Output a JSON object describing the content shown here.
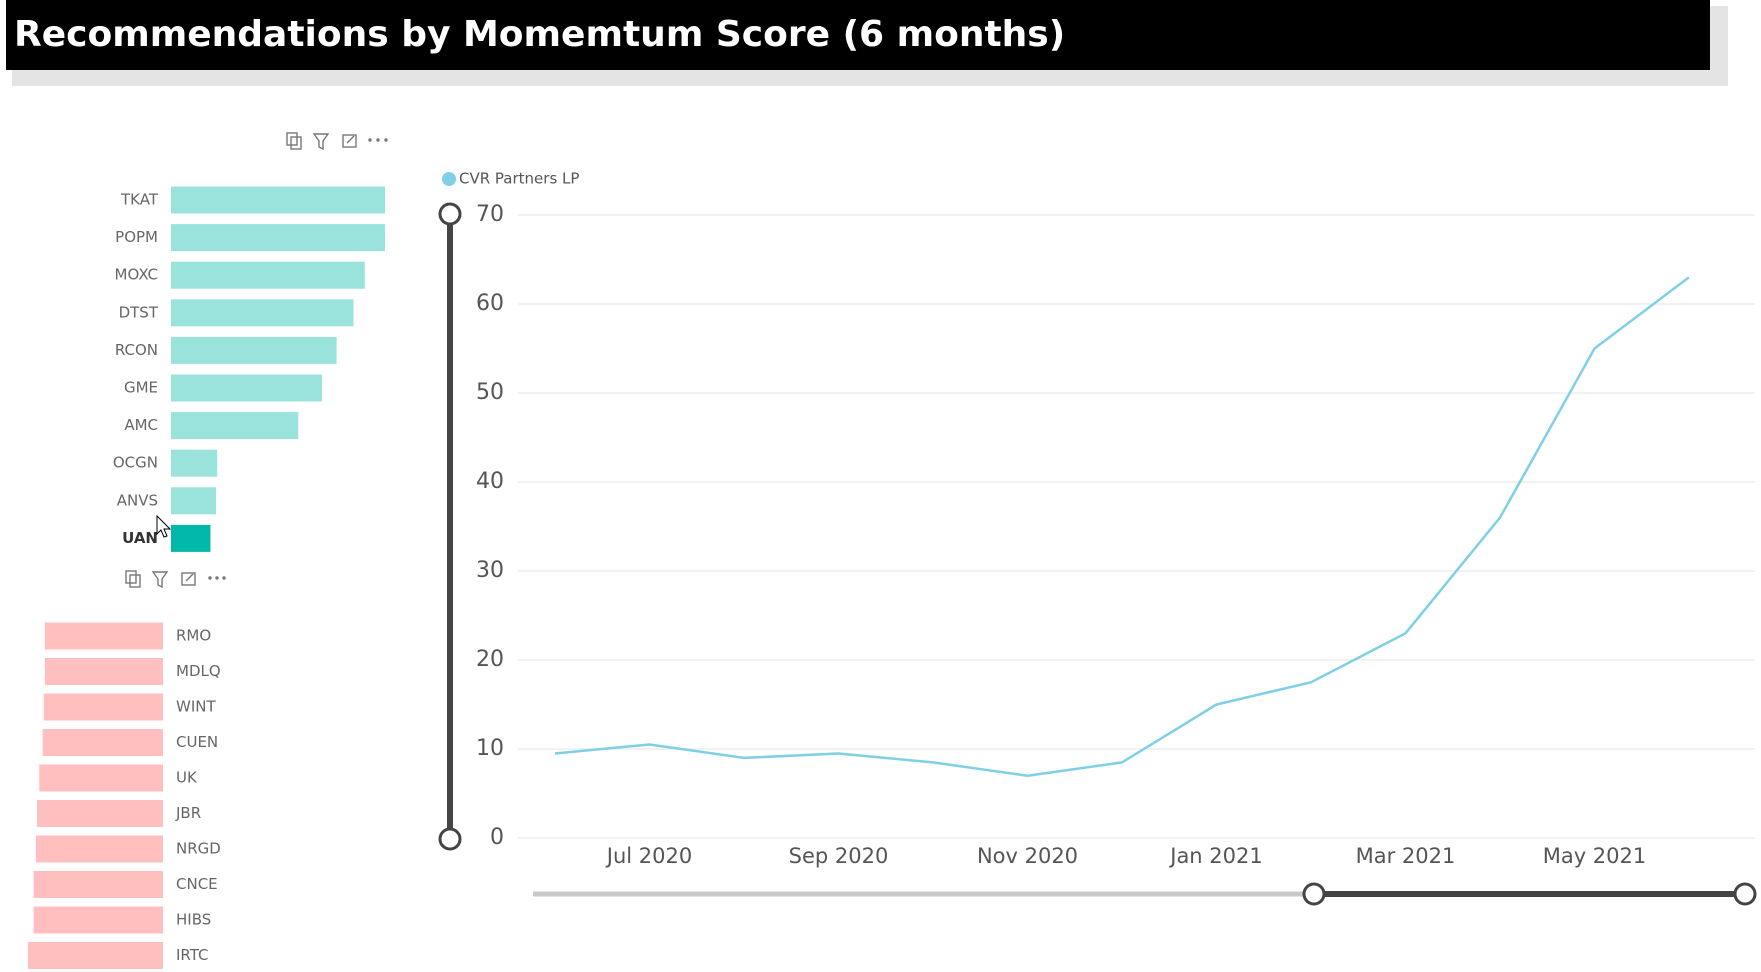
{
  "title": "Recommendations by Momemtum Score (6 months)",
  "chart_data": [
    {
      "type": "bar",
      "orientation": "horizontal",
      "bar_align": "left",
      "categories": [
        "TKAT",
        "POPM",
        "MOXC",
        "DTST",
        "RCON",
        "GME",
        "AMC",
        "OCGN",
        "ANVS",
        "UAN"
      ],
      "values": [
        190,
        190,
        172,
        162,
        147,
        134,
        113,
        41,
        40,
        35
      ],
      "colors": [
        "#99e3dc",
        "#99e3dc",
        "#99e3dc",
        "#99e3dc",
        "#99e3dc",
        "#99e3dc",
        "#99e3dc",
        "#99e3dc",
        "#99e3dc",
        "#01b8aa"
      ]
    },
    {
      "type": "bar",
      "orientation": "horizontal",
      "bar_align": "right",
      "categories": [
        "RMO",
        "MDLQ",
        "WINT",
        "CUEN",
        "UK",
        "JBR",
        "NRGD",
        "CNCE",
        "HIBS",
        "IRTC"
      ],
      "values": [
        105,
        105,
        106,
        107,
        110,
        112,
        113,
        115,
        115,
        120
      ],
      "colors": [
        "#ffbfbf",
        "#ffbfbf",
        "#ffbfbf",
        "#ffbfbf",
        "#ffbfbf",
        "#ffbfbf",
        "#ffbfbf",
        "#ffbfbf",
        "#ffbfbf",
        "#ffbfbf"
      ]
    },
    {
      "type": "line",
      "x": [
        "2020-06",
        "2020-07",
        "2020-08",
        "2020-09",
        "2020-10",
        "2020-11",
        "2020-12",
        "2021-01",
        "2021-02",
        "2021-03",
        "2021-04",
        "2021-05",
        "2021-06"
      ],
      "series": [
        {
          "name": "CVR Partners LP",
          "color": "#7fd0e6",
          "values": [
            9.5,
            10.5,
            9,
            9.5,
            8.5,
            7,
            8.5,
            15,
            17.5,
            23,
            36,
            55,
            63
          ]
        }
      ],
      "ylim": [
        0,
        70
      ],
      "yticks": [
        0,
        10,
        20,
        30,
        40,
        50,
        60,
        70
      ],
      "xticks": [
        {
          "value": "2020-07",
          "label": "Jul 2020"
        },
        {
          "value": "2020-09",
          "label": "Sep 2020"
        },
        {
          "value": "2020-11",
          "label": "Nov 2020"
        },
        {
          "value": "2021-01",
          "label": "Jan 2021"
        },
        {
          "value": "2021-03",
          "label": "Mar 2021"
        },
        {
          "value": "2021-05",
          "label": "May 2021"
        }
      ],
      "grid": true,
      "legend": "top-left"
    }
  ]
}
